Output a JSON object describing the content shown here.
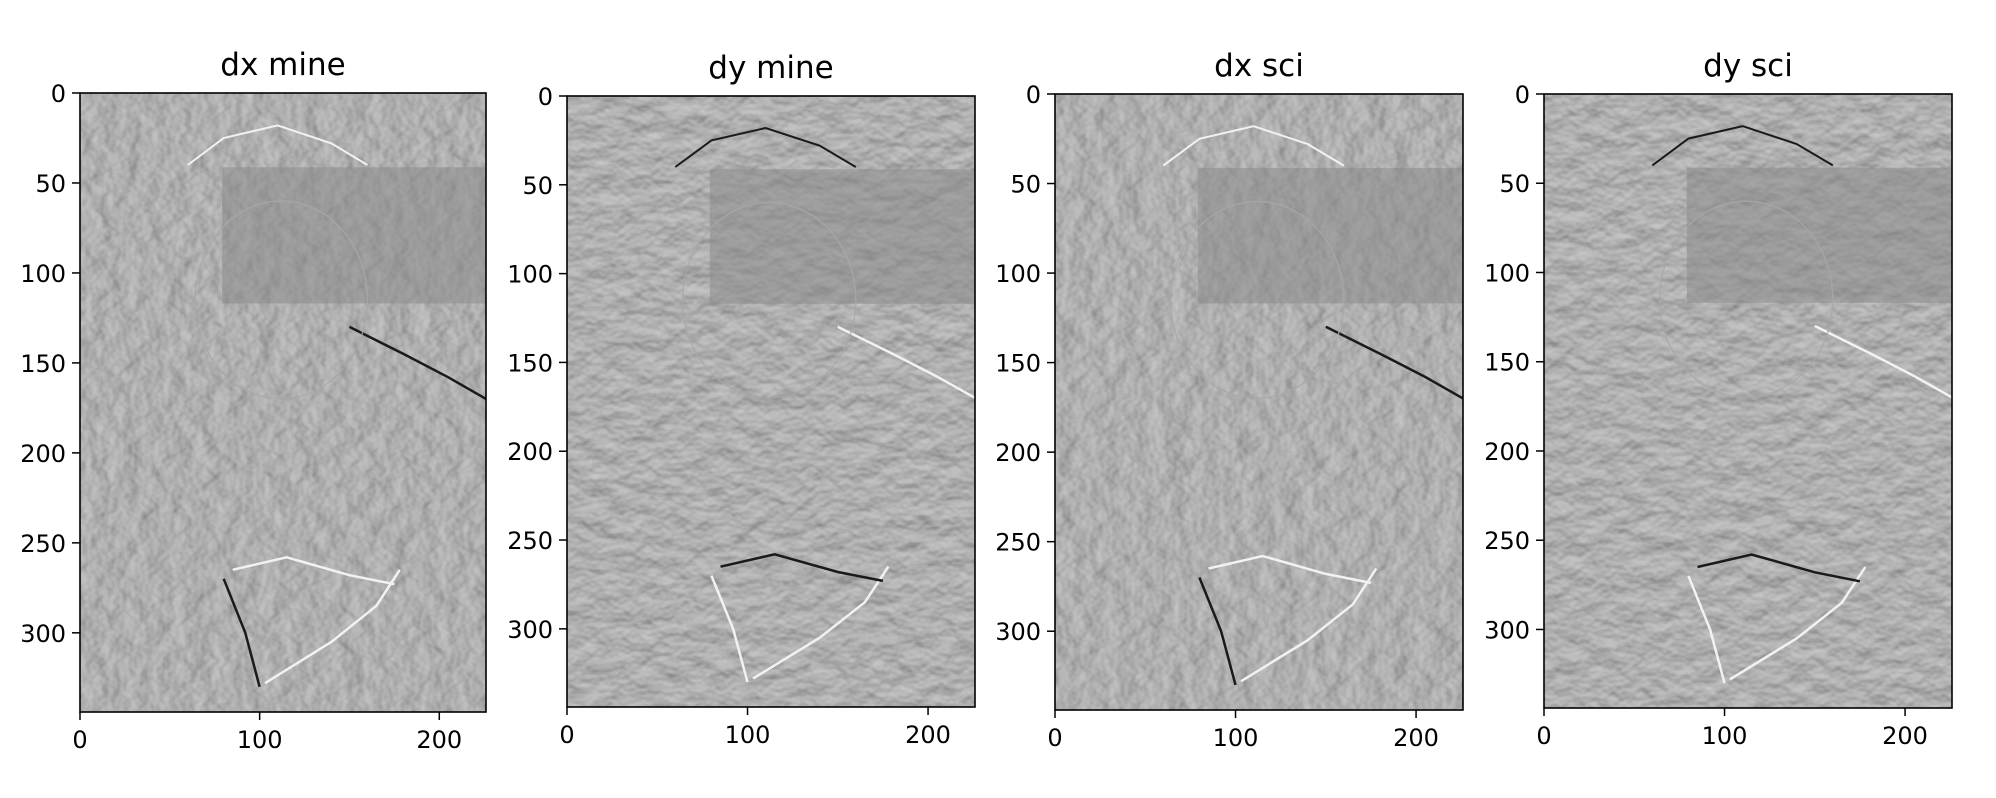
{
  "chart_data": [
    {
      "type": "image",
      "title": "dx mine",
      "operator": "dx",
      "xlim": [
        0,
        226
      ],
      "ylim": [
        344,
        0
      ],
      "xticks": [
        0,
        100,
        200
      ],
      "yticks": [
        0,
        50,
        100,
        150,
        200,
        250,
        300
      ],
      "colormap": "gray",
      "background": "#8a8a8a"
    },
    {
      "type": "image",
      "title": "dy mine",
      "operator": "dy",
      "xlim": [
        0,
        226
      ],
      "ylim": [
        344,
        0
      ],
      "xticks": [
        0,
        100,
        200
      ],
      "yticks": [
        0,
        50,
        100,
        150,
        200,
        250,
        300
      ],
      "colormap": "gray",
      "background": "#8a8a8a"
    },
    {
      "type": "image",
      "title": "dx sci",
      "operator": "dx",
      "xlim": [
        0,
        226
      ],
      "ylim": [
        344,
        0
      ],
      "xticks": [
        0,
        100,
        200
      ],
      "yticks": [
        0,
        50,
        100,
        150,
        200,
        250,
        300
      ],
      "colormap": "gray",
      "background": "#8a8a8a"
    },
    {
      "type": "image",
      "title": "dy sci",
      "operator": "dy",
      "xlim": [
        0,
        226
      ],
      "ylim": [
        344,
        0
      ],
      "xticks": [
        0,
        100,
        200
      ],
      "yticks": [
        0,
        50,
        100,
        150,
        200,
        250,
        300
      ],
      "colormap": "gray",
      "background": "#8a8a8a"
    }
  ]
}
